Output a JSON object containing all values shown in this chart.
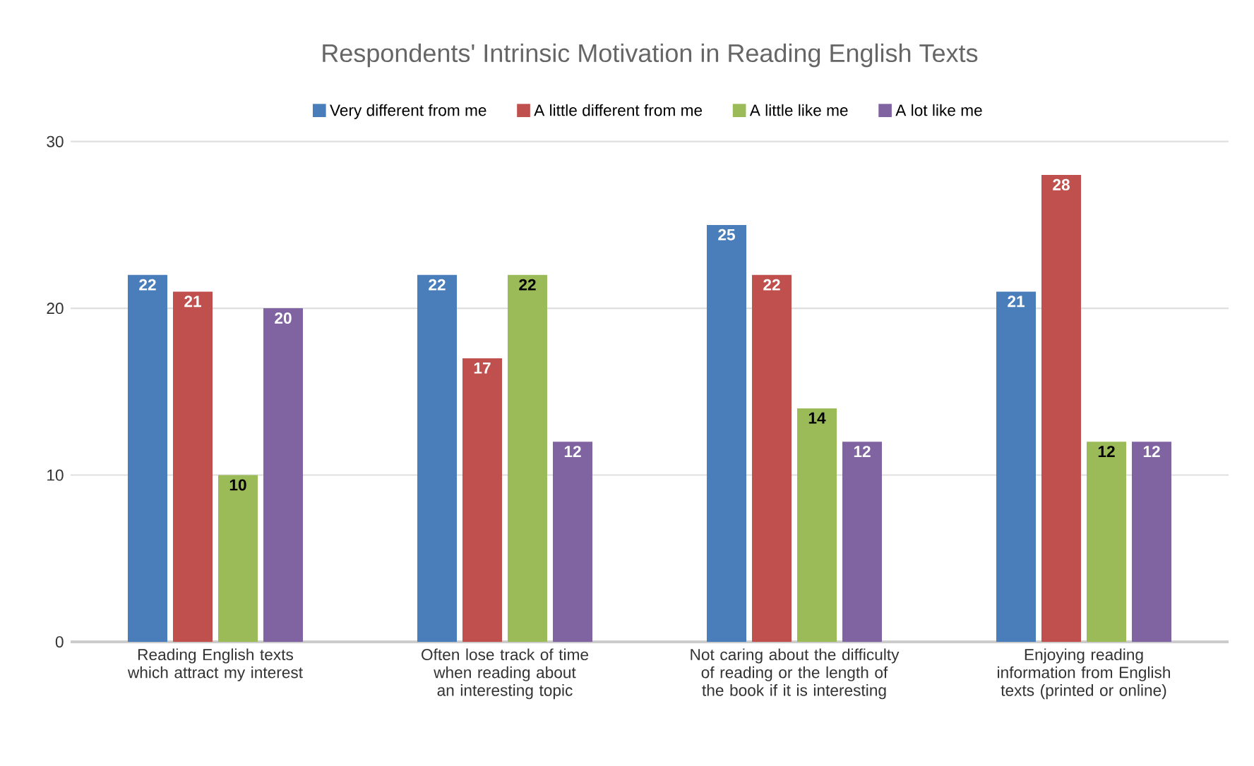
{
  "chart_data": {
    "type": "bar",
    "title": "Respondents' Intrinsic Motivation in Reading English Texts",
    "categories": [
      "Reading English texts which attract my interest",
      "Often lose track of time when reading about an interesting topic",
      "Not caring about the difficulty of reading or the length of the book if it is interesting",
      "Enjoying reading information from English texts (printed or online)"
    ],
    "series": [
      {
        "name": "Very different from me",
        "color": "#4a7ebb",
        "values": [
          22,
          22,
          25,
          21
        ]
      },
      {
        "name": "A little different from me",
        "color": "#c0504d",
        "values": [
          21,
          17,
          22,
          28
        ]
      },
      {
        "name": "A little like me",
        "color": "#9bbb59",
        "values": [
          10,
          22,
          14,
          12
        ]
      },
      {
        "name": "A lot like me",
        "color": "#8064a2",
        "values": [
          20,
          12,
          12,
          12
        ]
      }
    ],
    "ylim": [
      0,
      30
    ],
    "yticks": [
      0,
      10,
      20,
      30
    ],
    "grid": "y",
    "legend": "top",
    "data_labels": true
  }
}
